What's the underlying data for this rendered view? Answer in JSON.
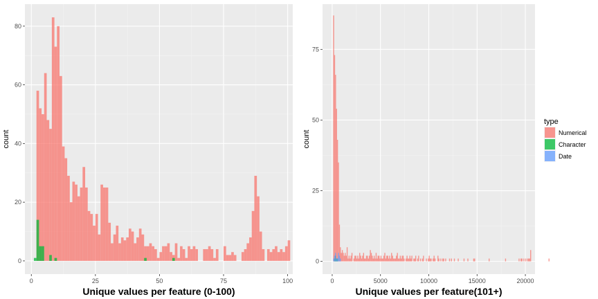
{
  "chart_data": [
    {
      "type": "bar",
      "subtype": "histogram",
      "xlabel": "Unique values per feature (0-100)",
      "ylabel": "count",
      "xlim": [
        -2.5,
        102
      ],
      "ylim": [
        -4.5,
        87.5
      ],
      "x_ticks": [
        0,
        25,
        50,
        75,
        100
      ],
      "x_tick_labels": [
        "0",
        "25",
        "50",
        "75",
        "100"
      ],
      "y_ticks": [
        0,
        20,
        40,
        60,
        80
      ],
      "y_tick_labels": [
        "0",
        "20",
        "40",
        "60",
        "80"
      ],
      "grid": true,
      "bin_start": 0,
      "bin_width": 1,
      "series": [
        {
          "name": "Numerical",
          "color": "#F8766D",
          "values": [
            0,
            0,
            58,
            52,
            50,
            64,
            48,
            45,
            83,
            73,
            80,
            63,
            39,
            35,
            29,
            20,
            27,
            26,
            22,
            25,
            32,
            25,
            17,
            16,
            12,
            16,
            9,
            26,
            25,
            25,
            13,
            6,
            9,
            12,
            6,
            8,
            7,
            8,
            11,
            10,
            6,
            8,
            11,
            9,
            5,
            5,
            6,
            5,
            4,
            1,
            3,
            5,
            5,
            6,
            3,
            2,
            6,
            1,
            5,
            4,
            1,
            5,
            4,
            5,
            4,
            0,
            0,
            4,
            4,
            5,
            4,
            1,
            4,
            0,
            0,
            5,
            2,
            2,
            3,
            2,
            0,
            0,
            3,
            4,
            6,
            8,
            17,
            29,
            22,
            10,
            4,
            0,
            4,
            3,
            4,
            5,
            3,
            4,
            3,
            5,
            7
          ]
        },
        {
          "name": "Character",
          "color": "#00BA38",
          "values": [
            0,
            1,
            14,
            5,
            5,
            0,
            0,
            2,
            0,
            1,
            0,
            0,
            0,
            0,
            0,
            0,
            0,
            0,
            0,
            0,
            0,
            0,
            0,
            0,
            0,
            0,
            0,
            0,
            0,
            0,
            0,
            0,
            0,
            0,
            0,
            0,
            0,
            0,
            0,
            0,
            0,
            0,
            0,
            0,
            1,
            0,
            0,
            0,
            0,
            0,
            0,
            0,
            0,
            0,
            0,
            1,
            0,
            0,
            0,
            0,
            0,
            0,
            0,
            0,
            0,
            0,
            0,
            0,
            0,
            0,
            0,
            0,
            0,
            0,
            0,
            0,
            0,
            0,
            0,
            0,
            0,
            0,
            0,
            0,
            0,
            0,
            0,
            0,
            0,
            0,
            0,
            0,
            0,
            0,
            0,
            0,
            0,
            0,
            0,
            0,
            0
          ]
        },
        {
          "name": "Date",
          "color": "#619CFF",
          "values": []
        }
      ]
    },
    {
      "type": "bar",
      "subtype": "histogram",
      "xlabel": "Unique values per feature(101+)",
      "ylabel": "count",
      "xlim": [
        -1000,
        21000
      ],
      "ylim": [
        -4.5,
        91
      ],
      "x_ticks": [
        0,
        5000,
        10000,
        15000,
        20000
      ],
      "x_tick_labels": [
        "0",
        "5000",
        "10000",
        "15000",
        "20000"
      ],
      "y_ticks": [
        0,
        25,
        50,
        75
      ],
      "y_tick_labels": [
        "0",
        "25",
        "50",
        "75"
      ],
      "grid": true,
      "bin_start": 100,
      "bin_width": 100,
      "series": [
        {
          "name": "Numerical",
          "color": "#F8766D",
          "values": [
            87,
            73,
            66,
            54,
            43,
            35,
            13,
            5,
            3,
            4,
            3,
            2,
            3,
            2,
            5,
            1,
            2,
            1,
            2,
            3,
            0,
            1,
            2,
            2,
            1,
            2,
            1,
            3,
            2,
            1,
            2,
            3,
            1,
            1,
            2,
            2,
            1,
            2,
            4,
            3,
            2,
            1,
            2,
            1,
            3,
            1,
            2,
            2,
            1,
            2,
            1,
            1,
            2,
            3,
            1,
            2,
            2,
            1,
            2,
            1,
            3,
            2,
            1,
            1,
            1,
            2,
            3,
            1,
            1,
            2,
            1,
            2,
            2,
            1,
            0,
            1,
            2,
            1,
            1,
            2,
            1,
            2,
            0,
            1,
            1,
            2,
            0,
            1,
            2,
            0,
            1,
            0,
            1,
            2,
            0,
            0,
            1,
            0,
            1,
            2,
            1,
            1,
            0,
            1,
            2,
            1,
            0,
            0,
            2,
            1,
            0,
            1,
            0,
            1,
            1,
            0,
            1,
            0,
            0,
            0,
            1,
            0,
            1,
            0,
            0,
            1,
            0,
            0,
            0,
            1,
            0,
            0,
            0,
            0,
            0,
            1,
            0,
            0,
            0,
            1,
            0,
            0,
            0,
            0,
            0,
            1,
            1,
            0,
            0,
            0,
            0,
            0,
            0,
            0,
            0,
            0,
            0,
            0,
            0,
            0,
            0,
            1,
            0,
            0,
            0,
            0,
            0,
            0,
            0,
            0,
            0,
            0,
            0,
            0,
            0,
            0,
            0,
            0,
            1,
            0,
            0,
            0,
            0,
            0,
            0,
            0,
            0,
            0,
            0,
            0,
            0,
            0,
            1,
            0,
            1,
            1,
            0,
            1,
            0,
            1,
            0,
            1,
            1,
            1,
            4,
            0,
            0,
            0,
            0,
            0,
            0,
            0,
            0,
            0,
            0,
            0,
            0,
            0,
            0,
            0,
            0,
            0,
            0,
            1
          ]
        },
        {
          "name": "Character",
          "color": "#00BA38",
          "values": [
            0,
            1,
            2,
            1,
            1,
            0,
            0,
            0,
            0,
            0,
            0,
            0,
            0,
            0,
            0,
            0,
            0,
            0,
            0,
            0,
            0,
            0,
            0,
            0,
            0,
            0,
            0,
            0,
            0,
            0,
            0,
            0,
            0,
            0,
            0,
            0,
            0,
            0,
            0,
            0,
            0,
            0,
            0,
            0,
            0,
            0,
            0,
            0,
            0,
            0,
            0,
            0,
            0,
            0,
            0,
            0,
            0,
            0,
            0,
            0,
            0,
            0,
            0,
            0,
            0,
            0,
            0,
            0,
            0,
            0,
            0,
            0,
            0,
            0,
            0,
            0,
            0,
            0,
            0,
            0,
            0,
            0,
            0,
            0,
            0,
            0,
            0,
            0,
            0,
            0,
            0,
            0,
            0,
            0,
            0,
            0,
            0,
            0,
            0,
            0,
            0,
            0,
            0,
            0,
            0,
            0,
            0,
            0,
            0,
            0,
            0,
            0,
            0,
            0,
            0,
            0,
            0,
            0,
            0,
            0,
            0,
            0,
            0,
            0,
            0,
            0,
            0,
            0,
            0,
            0,
            0,
            0,
            0,
            0,
            0,
            0,
            0,
            0,
            0,
            0,
            0,
            0,
            0,
            0,
            0,
            0,
            0,
            0,
            0,
            0,
            0,
            0,
            0,
            0,
            0,
            0,
            0,
            0,
            0,
            0,
            0,
            0,
            0,
            0,
            0,
            0,
            0,
            0,
            0,
            0,
            0,
            0,
            0,
            0,
            0,
            0,
            0,
            0,
            0,
            0,
            0,
            0,
            0,
            0,
            0,
            0,
            0,
            0,
            0,
            0,
            0,
            0,
            0,
            0,
            0,
            0,
            0,
            0,
            0,
            0,
            0,
            0,
            0,
            0,
            0,
            0,
            0,
            0,
            0,
            0,
            0,
            0,
            0,
            0,
            0,
            0,
            0,
            0,
            0,
            0,
            0,
            0,
            0,
            0,
            0,
            0,
            0,
            0,
            0,
            0
          ]
        },
        {
          "name": "Date",
          "color": "#619CFF",
          "values": [
            1,
            2,
            3,
            1,
            1,
            3,
            2,
            1,
            0,
            0,
            0,
            0,
            0,
            0,
            0,
            0,
            0,
            0,
            0,
            0,
            0,
            0,
            0,
            0,
            0,
            0,
            0,
            0,
            0,
            0,
            0,
            0,
            0,
            0,
            0,
            0,
            0,
            0,
            0,
            0,
            0,
            0,
            0,
            0,
            0,
            0,
            0,
            0,
            0,
            0,
            0,
            0,
            0,
            0,
            0,
            0,
            0,
            0,
            0,
            0,
            0,
            0,
            0,
            0,
            0,
            0,
            0,
            0,
            0,
            0,
            0,
            0,
            0,
            0,
            0,
            0,
            0,
            0,
            0,
            0,
            0,
            0,
            0,
            0,
            0,
            0,
            0,
            0,
            0,
            0,
            0,
            0,
            0,
            0,
            0,
            0,
            0,
            0,
            0,
            0,
            0,
            0,
            0,
            0,
            0,
            0,
            0,
            0,
            0,
            0,
            0,
            0,
            0,
            0,
            0,
            0,
            0,
            0,
            0,
            0,
            0,
            0,
            0,
            0,
            0,
            0,
            0,
            0,
            0,
            0,
            0,
            0,
            0,
            0,
            0,
            0,
            0,
            0,
            0,
            0,
            0,
            0,
            0,
            0,
            0,
            0,
            0,
            0,
            0,
            0,
            0,
            0,
            0,
            0,
            0,
            0,
            0,
            0,
            0,
            0,
            0,
            0,
            0,
            0,
            0,
            0,
            0,
            0,
            0,
            0,
            0,
            0,
            0,
            0,
            0,
            0,
            0,
            0,
            0,
            0,
            0,
            0,
            0,
            0,
            0,
            0,
            0,
            0,
            0,
            0,
            0,
            0,
            0,
            0,
            0,
            0,
            0,
            0,
            0,
            0,
            0,
            0,
            0,
            0,
            0,
            0,
            0,
            0,
            0,
            0,
            0,
            0,
            0,
            0,
            0,
            0,
            0,
            0,
            0,
            0,
            0,
            0,
            0,
            0,
            0,
            0,
            0,
            0,
            0,
            0
          ]
        }
      ]
    }
  ],
  "legend": {
    "title": "type",
    "placement": "right",
    "items": [
      {
        "label": "Numerical",
        "color": "#F8766D"
      },
      {
        "label": "Character",
        "color": "#00BA38"
      },
      {
        "label": "Date",
        "color": "#619CFF"
      }
    ]
  }
}
